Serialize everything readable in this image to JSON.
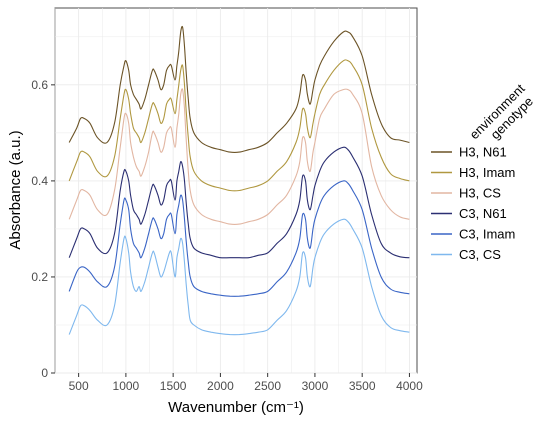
{
  "chart_data": {
    "type": "line",
    "title": "",
    "xlabel": "Wavenumber (cm⁻¹)",
    "ylabel": "Absorbance (a.u.)",
    "xlim": [
      250,
      4080
    ],
    "ylim": [
      0,
      0.76
    ],
    "x_ticks": [
      500,
      1000,
      1500,
      2000,
      2500,
      3000,
      3500,
      4000
    ],
    "x_tick_labels": [
      "500",
      "1000",
      "1500",
      "2000",
      "2500",
      "3000",
      "3500",
      "4000"
    ],
    "y_ticks": [
      0,
      0.2,
      0.4,
      0.6
    ],
    "y_tick_labels": [
      "0",
      "0.2",
      "0.4",
      "0.6"
    ],
    "grid": true,
    "legend": {
      "placement": "right",
      "title_line1": "environment",
      "title_line2": "genotype"
    },
    "x": [
      400,
      480,
      520,
      560,
      620,
      700,
      800,
      880,
      940,
      980,
      1000,
      1030,
      1050,
      1080,
      1110,
      1140,
      1160,
      1200,
      1240,
      1280,
      1300,
      1340,
      1370,
      1400,
      1430,
      1460,
      1480,
      1520,
      1540,
      1560,
      1580,
      1600,
      1620,
      1640,
      1660,
      1680,
      1720,
      1800,
      1900,
      2000,
      2100,
      2200,
      2300,
      2400,
      2500,
      2600,
      2700,
      2800,
      2840,
      2870,
      2900,
      2920,
      2950,
      2980,
      3000,
      3050,
      3100,
      3200,
      3300,
      3350,
      3400,
      3500,
      3600,
      3700,
      3800,
      3900,
      4000
    ],
    "series": [
      {
        "name": "H3, N61",
        "color": "#6b5326",
        "values": [
          0.48,
          0.51,
          0.53,
          0.53,
          0.52,
          0.49,
          0.48,
          0.52,
          0.6,
          0.64,
          0.65,
          0.63,
          0.6,
          0.58,
          0.57,
          0.56,
          0.55,
          0.57,
          0.6,
          0.63,
          0.63,
          0.61,
          0.59,
          0.6,
          0.63,
          0.64,
          0.64,
          0.61,
          0.64,
          0.67,
          0.71,
          0.72,
          0.68,
          0.62,
          0.57,
          0.53,
          0.5,
          0.48,
          0.47,
          0.465,
          0.46,
          0.46,
          0.465,
          0.47,
          0.48,
          0.5,
          0.52,
          0.55,
          0.58,
          0.62,
          0.61,
          0.58,
          0.56,
          0.59,
          0.61,
          0.64,
          0.66,
          0.69,
          0.71,
          0.71,
          0.7,
          0.66,
          0.58,
          0.52,
          0.49,
          0.485,
          0.48
        ]
      },
      {
        "name": "H3, Imam",
        "color": "#b09840",
        "values": [
          0.4,
          0.44,
          0.46,
          0.46,
          0.45,
          0.42,
          0.41,
          0.45,
          0.53,
          0.58,
          0.59,
          0.57,
          0.54,
          0.51,
          0.5,
          0.49,
          0.48,
          0.5,
          0.53,
          0.56,
          0.56,
          0.54,
          0.52,
          0.53,
          0.56,
          0.57,
          0.57,
          0.54,
          0.57,
          0.6,
          0.63,
          0.64,
          0.6,
          0.54,
          0.49,
          0.45,
          0.42,
          0.4,
          0.39,
          0.385,
          0.38,
          0.38,
          0.385,
          0.39,
          0.4,
          0.42,
          0.44,
          0.48,
          0.51,
          0.55,
          0.54,
          0.51,
          0.49,
          0.52,
          0.54,
          0.58,
          0.6,
          0.63,
          0.65,
          0.65,
          0.64,
          0.6,
          0.51,
          0.45,
          0.415,
          0.405,
          0.4
        ]
      },
      {
        "name": "H3, CS",
        "color": "#e2b6a2",
        "values": [
          0.32,
          0.36,
          0.38,
          0.38,
          0.37,
          0.34,
          0.33,
          0.38,
          0.47,
          0.53,
          0.54,
          0.52,
          0.48,
          0.45,
          0.43,
          0.42,
          0.41,
          0.43,
          0.46,
          0.5,
          0.5,
          0.48,
          0.46,
          0.47,
          0.5,
          0.51,
          0.51,
          0.47,
          0.51,
          0.54,
          0.58,
          0.59,
          0.55,
          0.48,
          0.42,
          0.38,
          0.35,
          0.33,
          0.32,
          0.315,
          0.31,
          0.31,
          0.315,
          0.32,
          0.33,
          0.35,
          0.37,
          0.41,
          0.44,
          0.49,
          0.48,
          0.44,
          0.42,
          0.46,
          0.48,
          0.53,
          0.55,
          0.58,
          0.59,
          0.59,
          0.58,
          0.54,
          0.43,
          0.37,
          0.34,
          0.325,
          0.32
        ]
      },
      {
        "name": "C3, N61",
        "color": "#2b2f72",
        "values": [
          0.24,
          0.28,
          0.3,
          0.3,
          0.29,
          0.26,
          0.25,
          0.29,
          0.38,
          0.42,
          0.42,
          0.4,
          0.37,
          0.34,
          0.33,
          0.32,
          0.31,
          0.33,
          0.36,
          0.39,
          0.39,
          0.37,
          0.35,
          0.36,
          0.39,
          0.4,
          0.4,
          0.36,
          0.4,
          0.42,
          0.44,
          0.43,
          0.4,
          0.35,
          0.31,
          0.28,
          0.26,
          0.25,
          0.245,
          0.24,
          0.24,
          0.24,
          0.24,
          0.245,
          0.25,
          0.27,
          0.29,
          0.33,
          0.36,
          0.41,
          0.4,
          0.36,
          0.34,
          0.37,
          0.39,
          0.42,
          0.44,
          0.46,
          0.47,
          0.465,
          0.45,
          0.41,
          0.33,
          0.27,
          0.25,
          0.242,
          0.24
        ]
      },
      {
        "name": "C3, Imam",
        "color": "#3a65c6",
        "values": [
          0.17,
          0.21,
          0.22,
          0.22,
          0.21,
          0.19,
          0.18,
          0.22,
          0.31,
          0.36,
          0.36,
          0.34,
          0.3,
          0.27,
          0.26,
          0.25,
          0.24,
          0.26,
          0.29,
          0.32,
          0.32,
          0.3,
          0.28,
          0.29,
          0.32,
          0.33,
          0.33,
          0.29,
          0.33,
          0.35,
          0.37,
          0.36,
          0.32,
          0.27,
          0.23,
          0.2,
          0.18,
          0.17,
          0.165,
          0.162,
          0.16,
          0.16,
          0.162,
          0.165,
          0.17,
          0.19,
          0.21,
          0.25,
          0.28,
          0.33,
          0.32,
          0.28,
          0.26,
          0.3,
          0.32,
          0.35,
          0.37,
          0.39,
          0.4,
          0.395,
          0.38,
          0.34,
          0.26,
          0.2,
          0.175,
          0.168,
          0.165
        ]
      },
      {
        "name": "C3, CS",
        "color": "#7fb8ee",
        "values": [
          0.08,
          0.12,
          0.14,
          0.14,
          0.13,
          0.11,
          0.1,
          0.14,
          0.23,
          0.28,
          0.28,
          0.25,
          0.21,
          0.18,
          0.17,
          0.18,
          0.17,
          0.19,
          0.22,
          0.25,
          0.25,
          0.22,
          0.2,
          0.21,
          0.23,
          0.25,
          0.25,
          0.2,
          0.24,
          0.26,
          0.28,
          0.27,
          0.23,
          0.18,
          0.14,
          0.11,
          0.1,
          0.09,
          0.085,
          0.082,
          0.08,
          0.08,
          0.082,
          0.085,
          0.09,
          0.11,
          0.13,
          0.17,
          0.2,
          0.25,
          0.24,
          0.2,
          0.18,
          0.22,
          0.24,
          0.27,
          0.29,
          0.31,
          0.32,
          0.315,
          0.3,
          0.26,
          0.18,
          0.12,
          0.095,
          0.088,
          0.085
        ]
      }
    ]
  }
}
